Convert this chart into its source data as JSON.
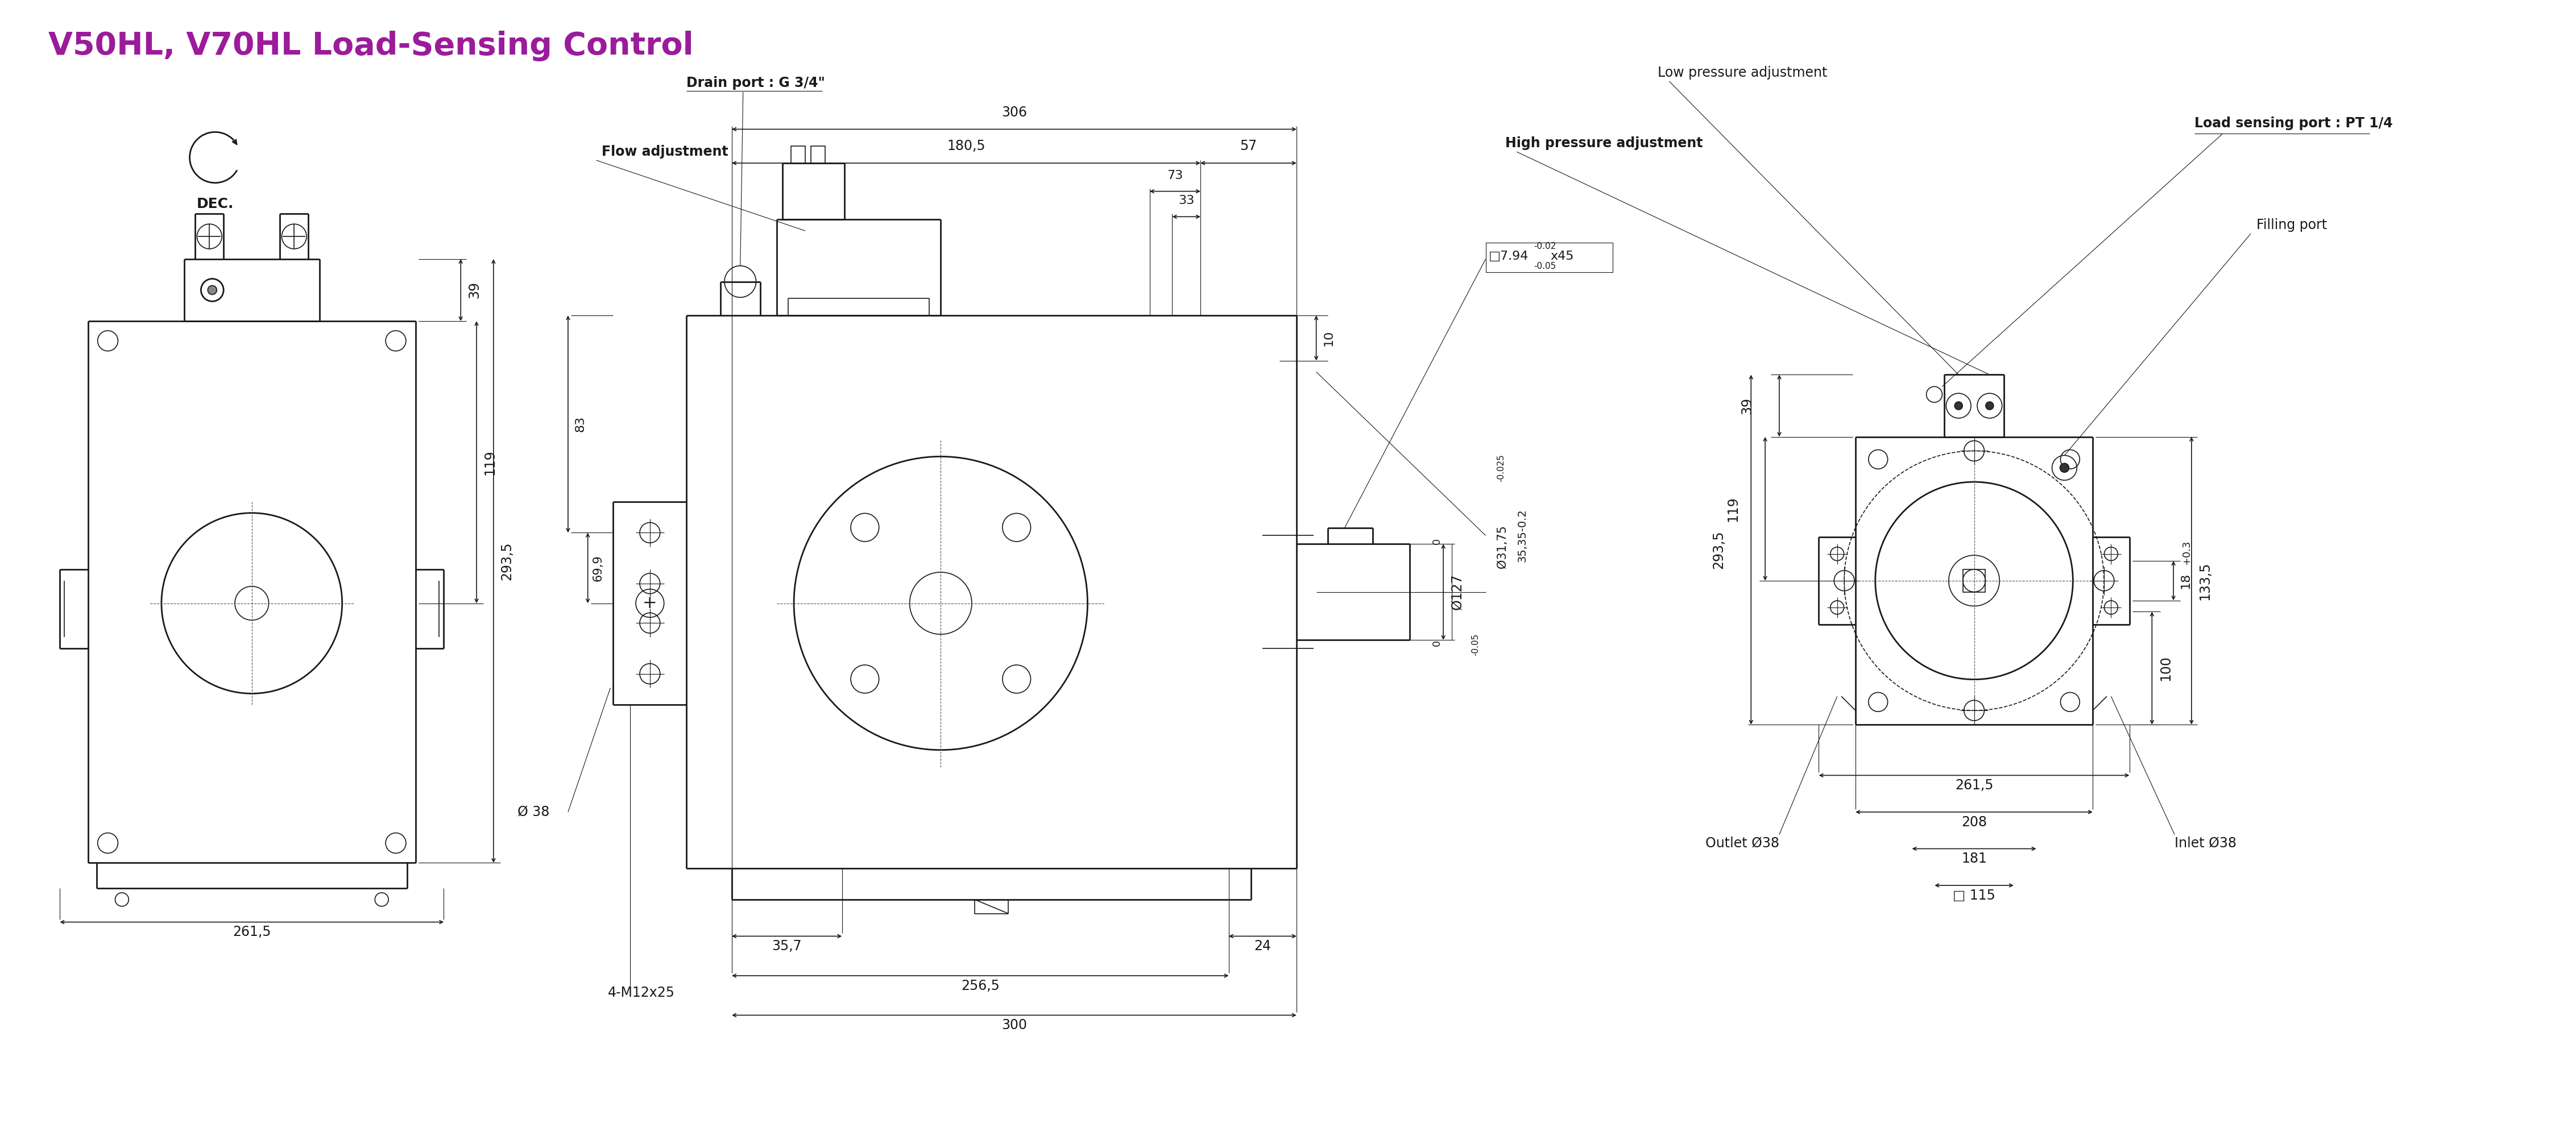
{
  "title": "V50HL, V70HL Load-Sensing Control",
  "title_color": "#9B1B9B",
  "bg_color": "#ffffff",
  "line_color": "#1a1a1a",
  "annotations": {
    "drain_port": "Drain port : G 3/4\"",
    "flow_adj": "Flow adjustment",
    "low_pressure": "Low pressure adjustment",
    "high_pressure": "High pressure adjustment",
    "load_sensing": "Load sensing port : PT 1/4",
    "filling_port": "Filling port",
    "dec": "DEC.",
    "outlet": "Outlet Ø38",
    "inlet": "Inlet Ø38",
    "bolt": "4-M12x25",
    "phi38": "Ø 38",
    "phi127": "Ø127",
    "phi127_tol": "-0.05",
    "phi31": "Ø31,75",
    "phi31_tol": "-0.025",
    "phi794": "□7.94",
    "phi794_tol": "-0.02\n-0.05",
    "phi794_suffix": "x45",
    "dim_35_35": "35,35-0.2",
    "dim_306": "306",
    "dim_1805": "180,5",
    "dim_57": "57",
    "dim_73": "73",
    "dim_33": "33",
    "dim_10": "10",
    "dim_83": "83",
    "dim_699": "69,9",
    "dim_357": "35,7",
    "dim_2565": "256,5",
    "dim_300": "300",
    "dim_24": "24",
    "dim_39": "39",
    "dim_119": "119",
    "dim_2935": "293,5",
    "dim_2615": "261,5",
    "dim_115": "□ 115",
    "dim_181": "181",
    "dim_208": "208",
    "dim_100": "100",
    "dim_18": "18",
    "dim_03": "+0.3",
    "dim_1335": "133,5",
    "dim_0": "0"
  }
}
